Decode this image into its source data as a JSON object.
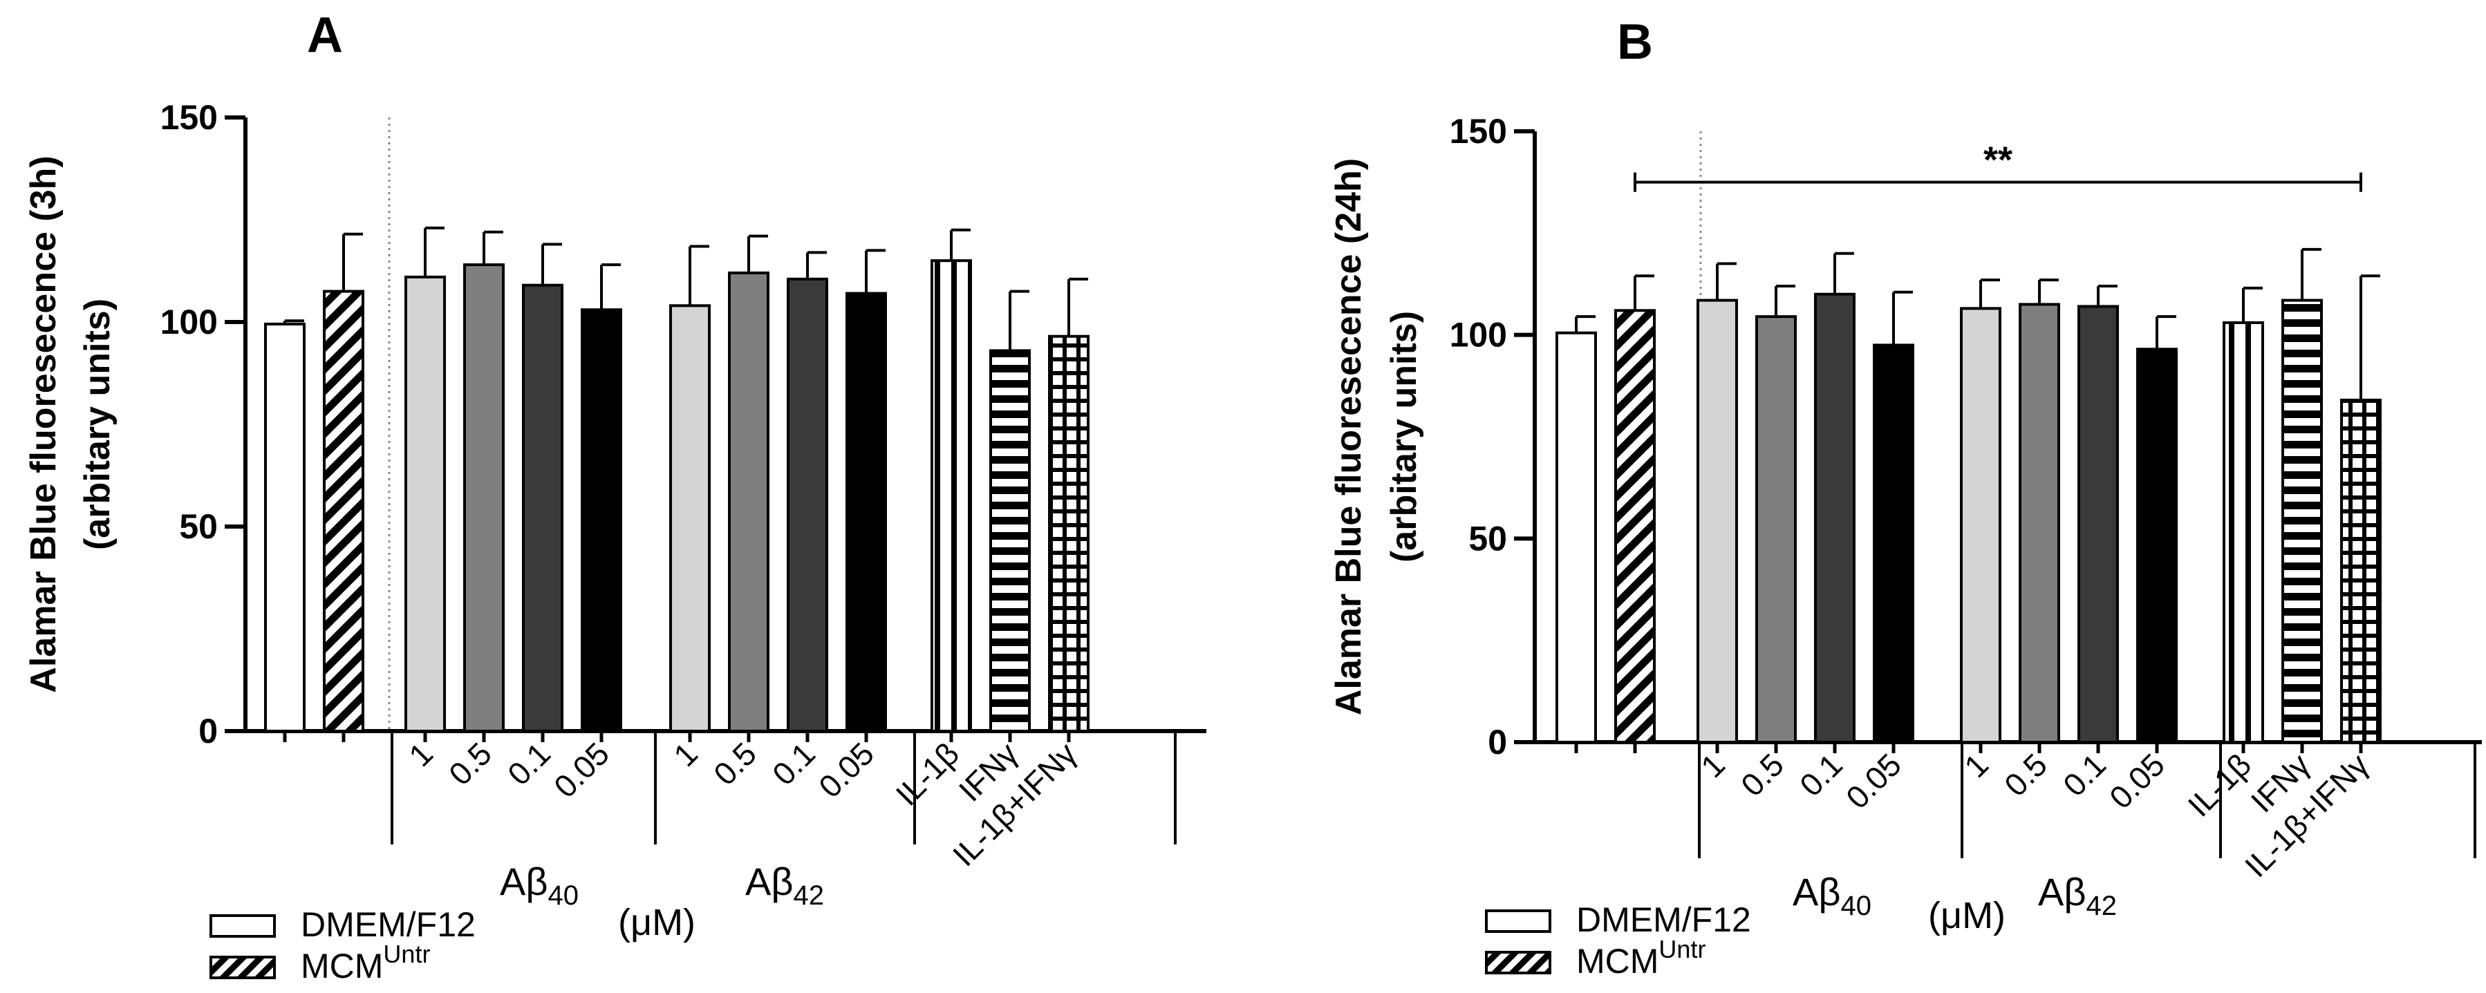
{
  "colors": {
    "white": "#ffffff",
    "light_gray": "#d4d4d4",
    "mid_gray": "#7f7f7f",
    "dark_gray": "#3a3a3a",
    "black": "#000000"
  },
  "legend": {
    "items": [
      {
        "label": "DMEM/F12",
        "pattern": "white"
      },
      {
        "label": "MCM",
        "sup": "Untr",
        "pattern": "diag"
      }
    ],
    "unit": "(μM)"
  },
  "chart_data": [
    {
      "panel": "A",
      "type": "bar",
      "ylabel_line1": "Alamar Blue fluoresecence (3h)",
      "ylabel_line2": "(arbitary units)",
      "ylim": [
        0,
        150
      ],
      "yticks": [
        "0",
        "50",
        "100",
        "150"
      ],
      "group_labels": [
        {
          "base": "Aβ",
          "sub": "40"
        },
        {
          "base": "Aβ",
          "sub": "42"
        }
      ],
      "bars": [
        {
          "label": "",
          "value": 99.5,
          "error": 0.8,
          "pattern": "white"
        },
        {
          "label": "",
          "value": 107.5,
          "error": 14,
          "pattern": "diag"
        },
        {
          "label": "1",
          "value": 111,
          "error": 12,
          "pattern": "light_gray"
        },
        {
          "label": "0.5",
          "value": 114,
          "error": 8,
          "pattern": "mid_gray"
        },
        {
          "label": "0.1",
          "value": 109,
          "error": 10,
          "pattern": "dark_gray"
        },
        {
          "label": "0.05",
          "value": 103,
          "error": 11,
          "pattern": "black"
        },
        {
          "label": "1",
          "value": 104,
          "error": 14.5,
          "pattern": "light_gray"
        },
        {
          "label": "0.5",
          "value": 112,
          "error": 9,
          "pattern": "mid_gray"
        },
        {
          "label": "0.1",
          "value": 110.5,
          "error": 6.5,
          "pattern": "dark_gray"
        },
        {
          "label": "0.05",
          "value": 107,
          "error": 10.5,
          "pattern": "black"
        },
        {
          "label": "IL-1β",
          "value": 115,
          "error": 7.5,
          "pattern": "vstripe"
        },
        {
          "label": "IFNγ",
          "value": 93,
          "error": 14.5,
          "pattern": "hstripe"
        },
        {
          "label": "IL-1β+IFNγ",
          "value": 96.5,
          "error": 14,
          "pattern": "grid"
        }
      ]
    },
    {
      "panel": "B",
      "type": "bar",
      "ylabel_line1": "Alamar Blue fluoresecence (24h)",
      "ylabel_line2": "(arbitary units)",
      "ylim": [
        0,
        150
      ],
      "yticks": [
        "0",
        "50",
        "100",
        "150"
      ],
      "significance": "**",
      "group_labels": [
        {
          "base": "Aβ",
          "sub": "40"
        },
        {
          "base": "Aβ",
          "sub": "42"
        }
      ],
      "bars": [
        {
          "label": "",
          "value": 100.5,
          "error": 4,
          "pattern": "white"
        },
        {
          "label": "",
          "value": 106,
          "error": 8.5,
          "pattern": "diag"
        },
        {
          "label": "1",
          "value": 108.5,
          "error": 9,
          "pattern": "light_gray"
        },
        {
          "label": "0.5",
          "value": 104.5,
          "error": 7.5,
          "pattern": "mid_gray"
        },
        {
          "label": "0.1",
          "value": 110,
          "error": 10,
          "pattern": "dark_gray"
        },
        {
          "label": "0.05",
          "value": 97.5,
          "error": 13,
          "pattern": "black"
        },
        {
          "label": "1",
          "value": 106.5,
          "error": 7,
          "pattern": "light_gray"
        },
        {
          "label": "0.5",
          "value": 107.5,
          "error": 6,
          "pattern": "mid_gray"
        },
        {
          "label": "0.1",
          "value": 107,
          "error": 5,
          "pattern": "dark_gray"
        },
        {
          "label": "0.05",
          "value": 96.5,
          "error": 8,
          "pattern": "black"
        },
        {
          "label": "IL-1β",
          "value": 103,
          "error": 8.5,
          "pattern": "vstripe"
        },
        {
          "label": "IFNγ",
          "value": 108.5,
          "error": 12.5,
          "pattern": "hstripe"
        },
        {
          "label": "IL-1β+IFNγ",
          "value": 84,
          "error": 30.5,
          "pattern": "grid"
        }
      ]
    }
  ]
}
